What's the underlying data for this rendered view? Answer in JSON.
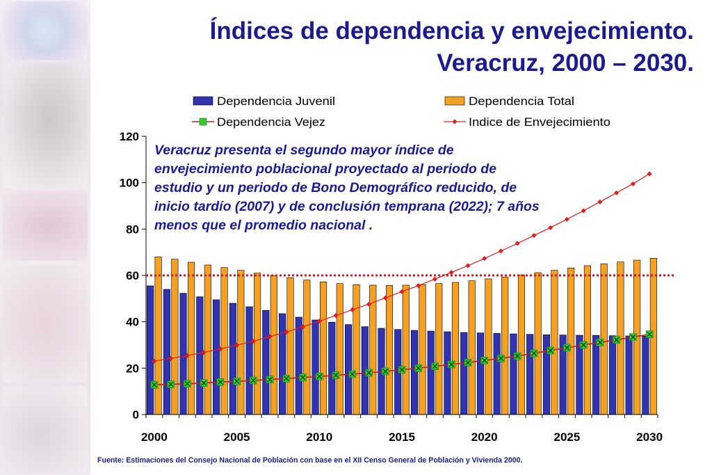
{
  "title": {
    "line1": "Índices de dependencia y envejecimiento.",
    "line2": "Veracruz, 2000 – 2030."
  },
  "annotation": "Veracruz presenta el segundo mayor índice de envejecimiento poblacional proyectado al periodo de estudio y un periodo de Bono Demográfico reducido, de inicio tardío (2007) y de conclusión temprana (2022); 7 años menos que el promedio nacional .",
  "source": "Fuente: Estimaciones del Consejo Nacional de Población con base en el XII Censo General de Población y Vivienda 2000.",
  "colors": {
    "title": "#1b1b8c",
    "juvenil": "#3333b0",
    "total": "#f4a024",
    "vejez_line": "#c41a1a",
    "vejez_marker": "#33cc33",
    "envejecimiento": "#e31a1a",
    "reference_line": "#c02020"
  },
  "chart_data": {
    "type": "bar",
    "x": [
      2000,
      2001,
      2002,
      2003,
      2004,
      2005,
      2006,
      2007,
      2008,
      2009,
      2010,
      2011,
      2012,
      2013,
      2014,
      2015,
      2016,
      2017,
      2018,
      2019,
      2020,
      2021,
      2022,
      2023,
      2024,
      2025,
      2026,
      2027,
      2028,
      2029,
      2030
    ],
    "x_ticks": [
      "2000",
      "2005",
      "2010",
      "2015",
      "2020",
      "2025",
      "2030"
    ],
    "y_ticks": [
      "0",
      "20",
      "40",
      "60",
      "80",
      "100",
      "120"
    ],
    "ylim": [
      0,
      120
    ],
    "reference_line": 60,
    "legend": [
      "Dependencia Juvenil",
      "Dependencia Total",
      "Dependencia Vejez",
      "Indice de Envejecimiento"
    ],
    "series": [
      {
        "name": "Dependencia Juvenil",
        "type": "bar",
        "values": [
          55.5,
          54,
          52.3,
          50.8,
          49.5,
          48,
          46.5,
          44.9,
          43.5,
          42,
          40.8,
          39.8,
          38.8,
          37.9,
          37.2,
          36.7,
          36.3,
          36,
          35.7,
          35.4,
          35.2,
          35,
          34.8,
          34.6,
          34.4,
          34.3,
          34.2,
          34.1,
          34,
          33.9,
          33.8
        ]
      },
      {
        "name": "Dependencia Total",
        "type": "bar",
        "values": [
          68,
          67,
          65.7,
          64.5,
          63.4,
          62.2,
          61,
          60,
          59,
          58,
          57.2,
          56.5,
          56,
          55.8,
          55.7,
          55.8,
          56,
          56.5,
          57,
          57.7,
          58.5,
          59.3,
          60.2,
          61.2,
          62.2,
          63.2,
          64.2,
          65,
          65.8,
          66.6,
          67.4
        ]
      },
      {
        "name": "Dependencia Vejez",
        "type": "line",
        "values": [
          12.8,
          13,
          13.3,
          13.6,
          14,
          14.3,
          14.7,
          15.1,
          15.5,
          16,
          16.4,
          16.9,
          17.4,
          18,
          18.6,
          19.3,
          20,
          20.8,
          21.6,
          22.4,
          23.3,
          24.2,
          25.2,
          26.4,
          27.6,
          28.8,
          30,
          31.1,
          32.2,
          33.4,
          34.6
        ]
      },
      {
        "name": "Indice de Envejecimiento",
        "type": "line",
        "values": [
          23,
          24.2,
          25.4,
          26.8,
          28.3,
          29.9,
          31.6,
          33.6,
          35.6,
          37.8,
          40.3,
          42.7,
          45.2,
          47.6,
          50.3,
          53,
          55.6,
          58.4,
          61.3,
          64.2,
          67.3,
          70.5,
          73.8,
          77.2,
          80.6,
          84.2,
          87.9,
          91.7,
          95.6,
          99.5,
          103.8
        ]
      }
    ]
  }
}
